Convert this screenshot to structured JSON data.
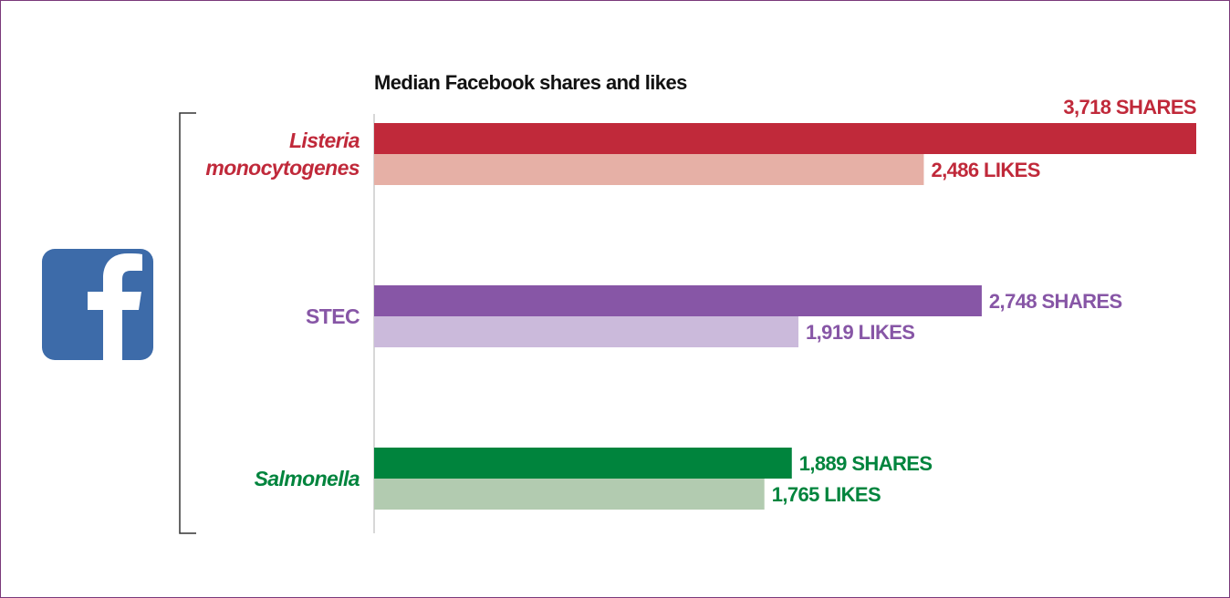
{
  "chart_data": {
    "type": "bar",
    "orientation": "horizontal",
    "title": "Median Facebook shares and likes",
    "categories": [
      "Listeria monocytogenes",
      "STEC",
      "Salmonella"
    ],
    "category_colors": [
      "#c0293a",
      "#8756a6",
      "#00843d"
    ],
    "category_italic": [
      true,
      false,
      true
    ],
    "series": [
      {
        "colors": [
          "#c0293a",
          "#8756a6",
          "#00843d"
        ],
        "values": [
          3718,
          2748,
          1889
        ],
        "value_labels": [
          "3,718 SHARES",
          "2,748 SHARES",
          "1,889 SHARES"
        ]
      },
      {
        "colors": [
          "#e6b0a6",
          "#cbbadb",
          "#b2cbb0"
        ],
        "values": [
          2486,
          1919,
          1765
        ],
        "value_labels": [
          "2,486 LIKES",
          "1,919 LIKES",
          "1,765 LIKES"
        ]
      }
    ]
  }
}
